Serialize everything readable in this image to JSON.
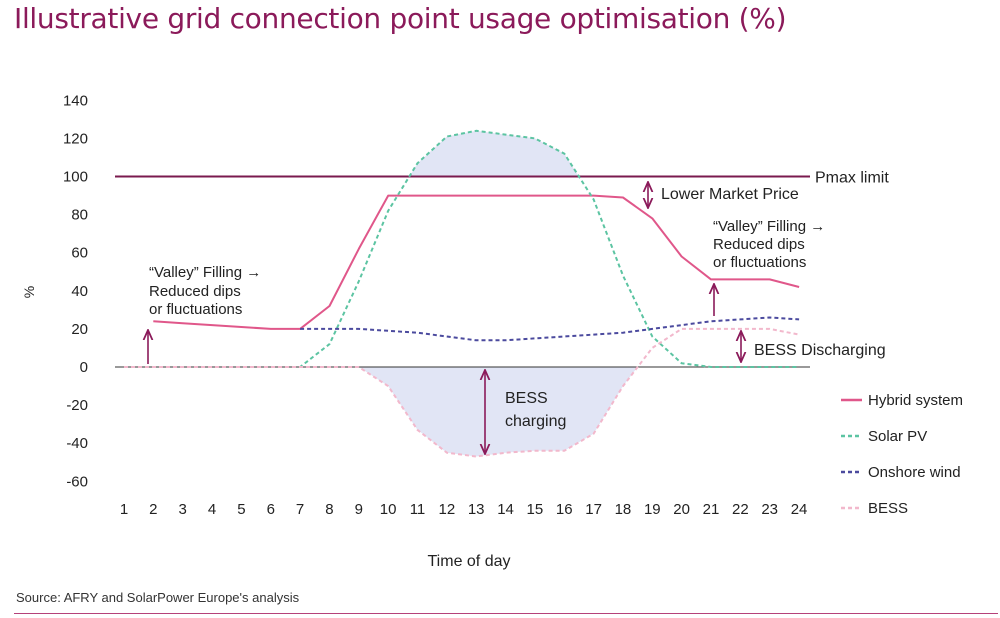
{
  "title": "Illustrative grid connection point usage optimisation (%)",
  "source": "Source: AFRY and SolarPower Europe's analysis",
  "colors": {
    "title": "#8b1a5a",
    "hybrid": "#e0578a",
    "solar": "#5cc4a2",
    "wind": "#4b4a9e",
    "bess": "#f2b8cc",
    "pmax": "#7a1a4e",
    "arrow": "#8b1a5a",
    "fill": "#d9def2"
  },
  "chart_data": {
    "type": "line",
    "title": "Illustrative grid connection point usage optimisation (%)",
    "xlabel": "Time of day",
    "ylabel": "%",
    "x": [
      1,
      2,
      3,
      4,
      5,
      6,
      7,
      8,
      9,
      10,
      11,
      12,
      13,
      14,
      15,
      16,
      17,
      18,
      19,
      20,
      21,
      22,
      23,
      24
    ],
    "xlim": [
      1,
      24
    ],
    "ylim": [
      -60,
      140
    ],
    "yticks": [
      140,
      120,
      100,
      80,
      60,
      40,
      20,
      0,
      -20,
      -40,
      -60
    ],
    "grid": false,
    "legend_position": "bottom-right",
    "series": [
      {
        "name": "Hybrid system",
        "style": "solid",
        "color": "#e0578a",
        "x": [
          2,
          3,
          4,
          5,
          6,
          7,
          8,
          9,
          10,
          11,
          12,
          13,
          14,
          15,
          16,
          17,
          18,
          19,
          20,
          21,
          22,
          23,
          24
        ],
        "values": [
          24,
          23,
          22,
          21,
          20,
          20,
          32,
          62,
          90,
          90,
          90,
          90,
          90,
          90,
          90,
          90,
          89,
          78,
          58,
          46,
          46,
          46,
          42
        ]
      },
      {
        "name": "Solar PV",
        "style": "dashed",
        "color": "#5cc4a2",
        "x": [
          1,
          2,
          3,
          4,
          5,
          6,
          7,
          8,
          9,
          10,
          11,
          12,
          13,
          14,
          15,
          16,
          17,
          18,
          19,
          20,
          21,
          22,
          23,
          24
        ],
        "values": [
          0,
          0,
          0,
          0,
          0,
          0,
          0,
          12,
          45,
          82,
          107,
          121,
          124,
          122,
          120,
          112,
          88,
          48,
          16,
          2,
          0,
          0,
          0,
          0
        ]
      },
      {
        "name": "Onshore wind",
        "style": "dashed",
        "color": "#4b4a9e",
        "x": [
          7,
          8,
          9,
          10,
          11,
          12,
          13,
          14,
          15,
          16,
          17,
          18,
          19,
          20,
          21,
          22,
          23,
          24
        ],
        "values": [
          20,
          20,
          20,
          19,
          18,
          16,
          14,
          14,
          15,
          16,
          17,
          18,
          20,
          22,
          24,
          25,
          26,
          25
        ]
      },
      {
        "name": "BESS",
        "style": "dashed",
        "color": "#f2b8cc",
        "x": [
          1,
          2,
          3,
          4,
          5,
          6,
          7,
          8,
          9,
          10,
          11,
          12,
          13,
          14,
          15,
          16,
          17,
          18,
          19,
          20,
          21,
          22,
          23,
          24
        ],
        "values": [
          0,
          0,
          0,
          0,
          0,
          0,
          0,
          0,
          0,
          -10,
          -33,
          -45,
          -47,
          -45,
          -44,
          -44,
          -35,
          -10,
          10,
          20,
          20,
          20,
          20,
          17
        ]
      }
    ],
    "pmax": {
      "label": "Pmax limit",
      "value": 100
    },
    "annotations": {
      "lower_market_price": "Lower Market Price",
      "bess_discharging": "BESS Discharging",
      "bess_charging_1": "BESS",
      "bess_charging_2": "charging",
      "valley_left_1": "“Valley” Filling →",
      "valley_left_2": "Reduced dips",
      "valley_left_3": "or fluctuations",
      "valley_right_1": "“Valley” Filling →",
      "valley_right_2": "Reduced dips",
      "valley_right_3": "or fluctuations"
    }
  }
}
